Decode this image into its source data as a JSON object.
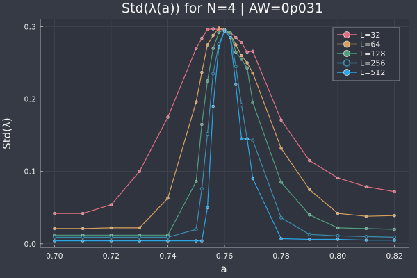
{
  "chart_data": {
    "type": "line",
    "title": "Std(λ(a)) for N=4 | AW=0p031",
    "xlabel": "a",
    "ylabel": "Std(λ)",
    "xlim": [
      0.695,
      0.825
    ],
    "ylim": [
      -0.005,
      0.31
    ],
    "xticks": [
      0.7,
      0.72,
      0.74,
      0.76,
      0.78,
      0.8,
      0.82
    ],
    "xtick_labels": [
      "0.70",
      "0.72",
      "0.74",
      "0.76",
      "0.78",
      "0.80",
      "0.82"
    ],
    "yticks": [
      0.0,
      0.1,
      0.2,
      0.3
    ],
    "ytick_labels": [
      "0.0",
      "0.1",
      "0.2",
      "0.3"
    ],
    "grid": true,
    "legend_position": "top-right",
    "series": [
      {
        "name": "L=32",
        "color": "#e26f84",
        "marker": "filled",
        "x": [
          0.7,
          0.71,
          0.72,
          0.73,
          0.74,
          0.75,
          0.752,
          0.754,
          0.756,
          0.758,
          0.76,
          0.762,
          0.764,
          0.766,
          0.768,
          0.77,
          0.78,
          0.79,
          0.8,
          0.81,
          0.82
        ],
        "y": [
          0.042,
          0.042,
          0.054,
          0.1,
          0.175,
          0.27,
          0.284,
          0.296,
          0.297,
          0.296,
          0.296,
          0.292,
          0.285,
          0.278,
          0.265,
          0.266,
          0.171,
          0.115,
          0.091,
          0.079,
          0.072
        ]
      },
      {
        "name": "L=64",
        "color": "#d9a15f",
        "marker": "filled",
        "x": [
          0.7,
          0.71,
          0.72,
          0.73,
          0.74,
          0.75,
          0.752,
          0.754,
          0.756,
          0.758,
          0.76,
          0.762,
          0.764,
          0.766,
          0.768,
          0.77,
          0.78,
          0.79,
          0.8,
          0.81,
          0.82
        ],
        "y": [
          0.021,
          0.021,
          0.022,
          0.022,
          0.063,
          0.196,
          0.237,
          0.275,
          0.288,
          0.298,
          0.296,
          0.29,
          0.275,
          0.26,
          0.25,
          0.236,
          0.132,
          0.075,
          0.042,
          0.038,
          0.039
        ]
      },
      {
        "name": "L=128",
        "color": "#4f9e80",
        "marker": "filled",
        "x": [
          0.7,
          0.71,
          0.72,
          0.73,
          0.74,
          0.75,
          0.752,
          0.754,
          0.756,
          0.758,
          0.76,
          0.762,
          0.764,
          0.766,
          0.768,
          0.77,
          0.78,
          0.79,
          0.8,
          0.81,
          0.82
        ],
        "y": [
          0.012,
          0.012,
          0.012,
          0.012,
          0.012,
          0.086,
          0.165,
          0.225,
          0.27,
          0.292,
          0.296,
          0.292,
          0.265,
          0.255,
          0.243,
          0.195,
          0.085,
          0.04,
          0.022,
          0.021,
          0.02
        ]
      },
      {
        "name": "L=256",
        "color": "#3c8fb0",
        "marker": "hollow",
        "x": [
          0.7,
          0.71,
          0.72,
          0.73,
          0.74,
          0.75,
          0.752,
          0.754,
          0.756,
          0.758,
          0.76,
          0.762,
          0.764,
          0.766,
          0.768,
          0.77,
          0.78,
          0.79,
          0.8,
          0.81,
          0.82
        ],
        "y": [
          0.009,
          0.009,
          0.009,
          0.009,
          0.009,
          0.02,
          0.076,
          0.152,
          0.235,
          0.276,
          0.294,
          0.288,
          0.245,
          0.192,
          0.145,
          0.143,
          0.036,
          0.013,
          0.011,
          0.01,
          0.009
        ]
      },
      {
        "name": "L=512",
        "color": "#2aa6e6",
        "marker": "filled",
        "x": [
          0.7,
          0.71,
          0.72,
          0.73,
          0.74,
          0.75,
          0.752,
          0.754,
          0.756,
          0.758,
          0.76,
          0.762,
          0.764,
          0.766,
          0.768,
          0.77,
          0.78,
          0.79,
          0.8,
          0.81,
          0.82
        ],
        "y": [
          0.004,
          0.004,
          0.004,
          0.004,
          0.004,
          0.004,
          0.004,
          0.05,
          0.19,
          0.272,
          0.294,
          0.285,
          0.22,
          0.145,
          0.145,
          0.09,
          0.007,
          0.006,
          0.006,
          0.005,
          0.005
        ]
      }
    ]
  }
}
